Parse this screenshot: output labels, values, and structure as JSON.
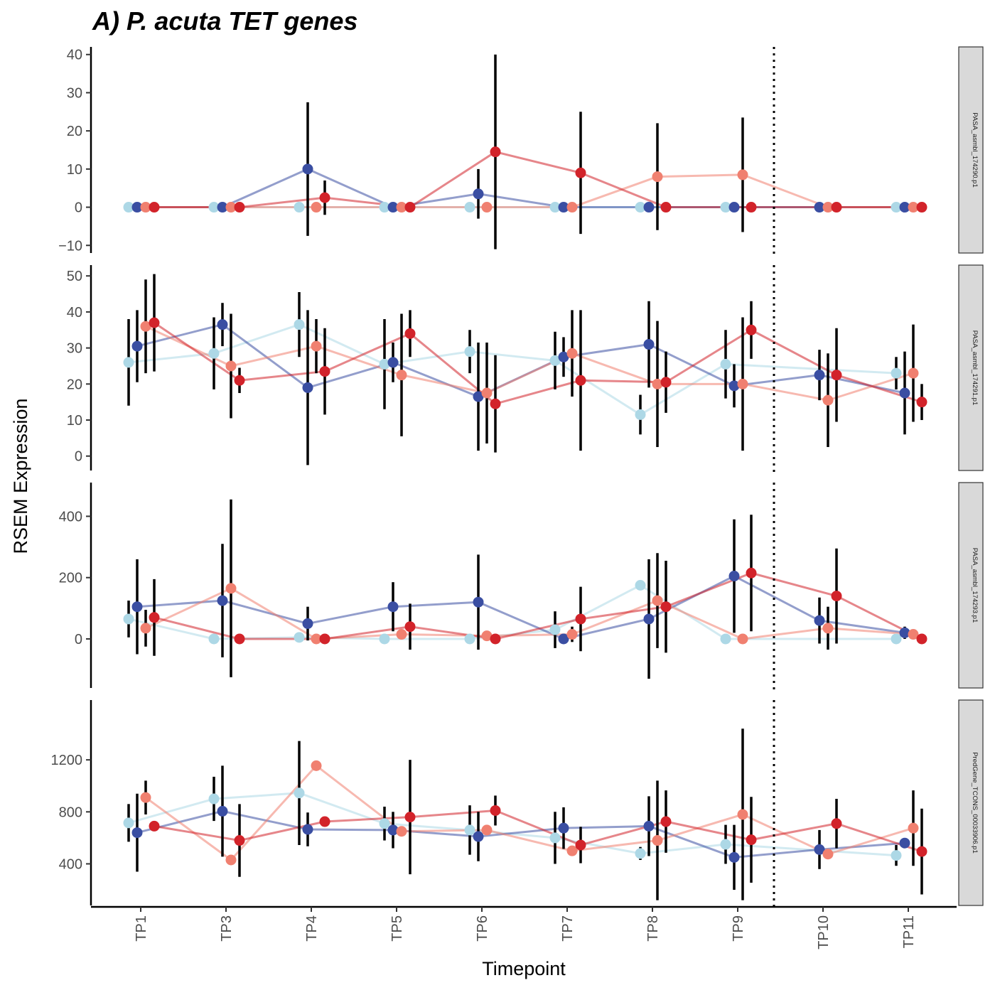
{
  "chart_data": {
    "type": "line",
    "title": "A) P. acuta TET genes",
    "xlabel": "Timepoint",
    "ylabel": "RSEM Expression",
    "categories": [
      "TP1",
      "TP3",
      "TP4",
      "TP5",
      "TP6",
      "TP7",
      "TP8",
      "TP9",
      "TP10",
      "TP11"
    ],
    "vline_after": "TP9",
    "colors": [
      "#add8e6",
      "#3a4ea2",
      "#f08070",
      "#d2232a"
    ],
    "legend": "none",
    "grid": false,
    "panels": [
      {
        "strip": "PASA_asmbl_174290.p1",
        "ylim": [
          -12,
          42
        ],
        "yticks": [
          -10,
          0,
          10,
          20,
          30,
          40
        ],
        "ytick_labels": [
          "−10",
          "0",
          "10",
          "20",
          "30",
          "40"
        ],
        "series": [
          {
            "values": [
              0,
              0,
              0,
              0,
              0,
              0,
              0,
              0,
              null,
              0
            ],
            "err": [
              0,
              0,
              0,
              0,
              0,
              0,
              0,
              0,
              null,
              0
            ]
          },
          {
            "values": [
              0,
              0,
              10,
              0,
              3.5,
              0,
              0,
              0,
              0,
              0
            ],
            "err": [
              0,
              0,
              17.5,
              0,
              6.5,
              0,
              0,
              0,
              0,
              0
            ]
          },
          {
            "values": [
              0,
              0,
              0,
              0,
              0,
              0,
              8,
              8.5,
              0,
              0
            ],
            "err": [
              0,
              0,
              0,
              0,
              0,
              0,
              14,
              15,
              0,
              0
            ]
          },
          {
            "values": [
              0,
              0,
              2.5,
              0,
              14.5,
              9,
              0,
              0,
              0,
              0
            ],
            "err": [
              0,
              0,
              4.5,
              0,
              25.5,
              16,
              0,
              0,
              0,
              0
            ]
          }
        ]
      },
      {
        "strip": "PASA_asmbl_174291.p1",
        "ylim": [
          -4,
          53
        ],
        "yticks": [
          0,
          10,
          20,
          30,
          40,
          50
        ],
        "ytick_labels": [
          "0",
          "10",
          "20",
          "30",
          "40",
          "50"
        ],
        "series": [
          {
            "values": [
              26,
              28.5,
              36.5,
              25.5,
              29,
              26.5,
              11.5,
              25.5,
              null,
              23
            ],
            "err": [
              12,
              10,
              9,
              12.5,
              6,
              8,
              5.5,
              9.5,
              null,
              4.5
            ]
          },
          {
            "values": [
              30.5,
              36.5,
              19,
              26,
              16.5,
              27.5,
              31,
              19.5,
              22.5,
              17.5
            ],
            "err": [
              10,
              6,
              21.5,
              5.5,
              15,
              5.5,
              12,
              6,
              7,
              11.5
            ]
          },
          {
            "values": [
              36,
              25,
              30.5,
              22.5,
              17.5,
              28.5,
              20,
              20,
              15.5,
              23
            ],
            "err": [
              13,
              14.5,
              7.5,
              17,
              14,
              12,
              17.5,
              18.5,
              13,
              13.5
            ]
          },
          {
            "values": [
              37,
              21,
              23.5,
              34,
              14.5,
              21,
              20.5,
              35,
              22.5,
              15
            ],
            "err": [
              13.5,
              3.5,
              12,
              6.5,
              13.5,
              19.5,
              8.5,
              8,
              13,
              5
            ]
          }
        ]
      },
      {
        "strip": "PASA_asmbl_174293.p1",
        "ylim": [
          -160,
          510
        ],
        "yticks": [
          0,
          200,
          400
        ],
        "ytick_labels": [
          "0",
          "200",
          "400"
        ],
        "series": [
          {
            "values": [
              65,
              0,
              5,
              0,
              0,
              30,
              175,
              0,
              null,
              0
            ],
            "err": [
              60,
              0,
              0,
              0,
              0,
              60,
              10,
              0,
              null,
              0
            ]
          },
          {
            "values": [
              105,
              125,
              50,
              105,
              120,
              0,
              65,
              205,
              60,
              20
            ],
            "err": [
              155,
              185,
              55,
              80,
              155,
              0,
              195,
              185,
              75,
              20
            ]
          },
          {
            "values": [
              35,
              165,
              0,
              15,
              10,
              15,
              125,
              0,
              35,
              15
            ],
            "err": [
              60,
              290,
              0,
              15,
              0,
              25,
              155,
              0,
              70,
              0
            ]
          },
          {
            "values": [
              70,
              0,
              0,
              40,
              0,
              65,
              105,
              215,
              140,
              0
            ],
            "err": [
              125,
              0,
              0,
              75,
              0,
              105,
              150,
              190,
              155,
              0
            ]
          }
        ]
      },
      {
        "strip": "PredGene_TCONS_00033906.p1",
        "ylim": [
          80,
          1660
        ],
        "yticks": [
          400,
          800,
          1200
        ],
        "ytick_labels": [
          "400",
          "800",
          "1200"
        ],
        "series": [
          {
            "values": [
              715,
              900,
              945,
              710,
              660,
              600,
              480,
              550,
              null,
              465
            ],
            "err": [
              145,
              170,
              400,
              130,
              190,
              200,
              50,
              150,
              null,
              80
            ]
          },
          {
            "values": [
              640,
              805,
              665,
              660,
              610,
              675,
              690,
              450,
              510,
              560
            ],
            "err": [
              300,
              350,
              130,
              140,
              190,
              160,
              230,
              250,
              150,
              0
            ]
          },
          {
            "values": [
              910,
              430,
              1155,
              650,
              660,
              500,
              580,
              780,
              475,
              675
            ],
            "err": [
              130,
              0,
              0,
              0,
              0,
              0,
              460,
              660,
              0,
              290
            ]
          },
          {
            "values": [
              690,
              580,
              725,
              760,
              810,
              545,
              725,
              585,
              710,
              495
            ],
            "err": [
              0,
              280,
              0,
              440,
              115,
              140,
              240,
              330,
              190,
              330
            ]
          }
        ]
      }
    ]
  }
}
